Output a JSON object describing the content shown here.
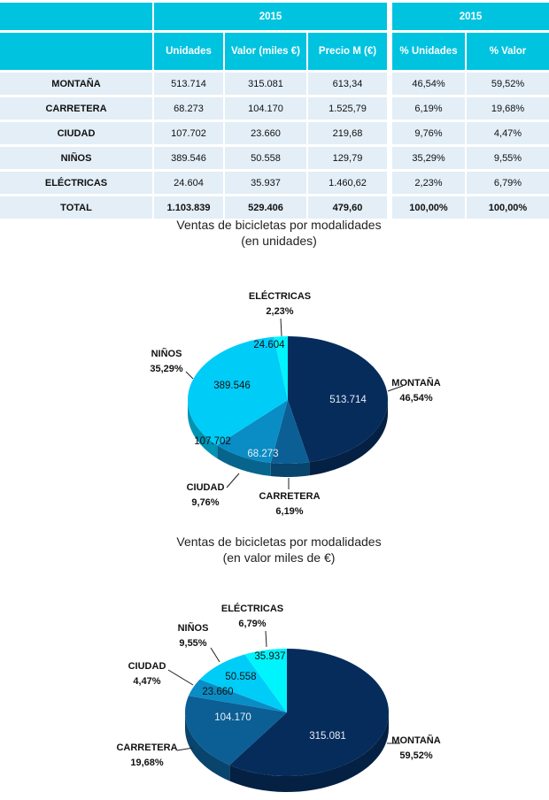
{
  "table": {
    "year_label": "2015",
    "headers": [
      "Unidades",
      "Valor (miles €)",
      "Precio M (€)"
    ],
    "pct_headers": [
      "% Unidades",
      "% Valor"
    ],
    "rows": [
      {
        "name": "MONTAÑA",
        "unidades": "513.714",
        "valor": "315.081",
        "precio": "613,34",
        "pct_unidades": "46,54%",
        "pct_valor": "59,52%"
      },
      {
        "name": "CARRETERA",
        "unidades": "68.273",
        "valor": "104.170",
        "precio": "1.525,79",
        "pct_unidades": "6,19%",
        "pct_valor": "19,68%"
      },
      {
        "name": "CIUDAD",
        "unidades": "107.702",
        "valor": "23.660",
        "precio": "219,68",
        "pct_unidades": "9,76%",
        "pct_valor": "4,47%"
      },
      {
        "name": "NIÑOS",
        "unidades": "389.546",
        "valor": "50.558",
        "precio": "129,79",
        "pct_unidades": "35,29%",
        "pct_valor": "9,55%"
      },
      {
        "name": "ELÉCTRICAS",
        "unidades": "24.604",
        "valor": "35.937",
        "precio": "1.460,62",
        "pct_unidades": "2,23%",
        "pct_valor": "6,79%"
      }
    ],
    "total": {
      "name": "TOTAL",
      "unidades": "1.103.839",
      "valor": "529.406",
      "precio": "479,60",
      "pct_unidades": "100,00%",
      "pct_valor": "100,00%"
    },
    "header_color": "#00c3e0",
    "row_color": "#e3eef7"
  },
  "chart_data": [
    {
      "type": "pie",
      "title": "Ventas de bicicletas por modalidades",
      "subtitle": "(en unidades)",
      "style": "3d",
      "categories": [
        "MONTAÑA",
        "CARRETERA",
        "CIUDAD",
        "NIÑOS",
        "ELÉCTRICAS"
      ],
      "values": [
        513714,
        68273,
        107702,
        389546,
        24604
      ],
      "value_labels": [
        "513.714",
        "68.273",
        "107.702",
        "389.546",
        "24.604"
      ],
      "percent_labels": [
        "46,54%",
        "6,19%",
        "9,76%",
        "35,29%",
        "2,23%"
      ],
      "colors": [
        "#062c5c",
        "#0b5f94",
        "#0a8cc4",
        "#00ccf8",
        "#00f4fc"
      ]
    },
    {
      "type": "pie",
      "title": "Ventas de bicicletas por modalidades",
      "subtitle": "(en valor miles de €)",
      "style": "3d",
      "categories": [
        "MONTAÑA",
        "CARRETERA",
        "CIUDAD",
        "NIÑOS",
        "ELÉCTRICAS"
      ],
      "values": [
        315081,
        104170,
        23660,
        50558,
        35937
      ],
      "value_labels": [
        "315.081",
        "104.170",
        "23.660",
        "50.558",
        "35.937"
      ],
      "percent_labels": [
        "59,52%",
        "19,68%",
        "4,47%",
        "9,55%",
        "6,79%"
      ],
      "colors": [
        "#062c5c",
        "#0b5f94",
        "#0a8cc4",
        "#00ccf8",
        "#00f4fc"
      ]
    }
  ]
}
